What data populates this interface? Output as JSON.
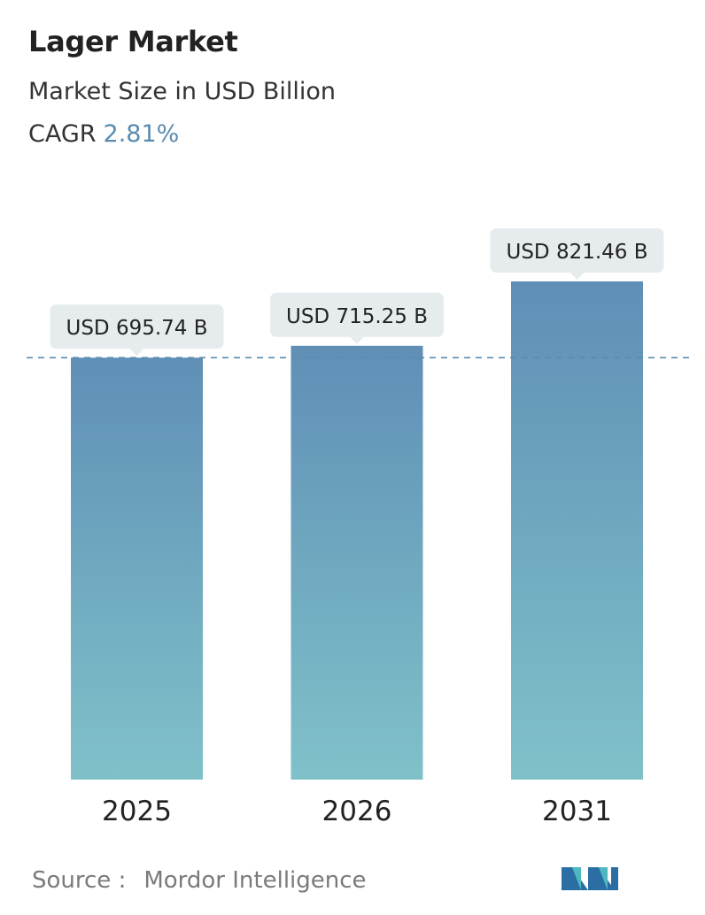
{
  "header": {
    "title": "Lager Market",
    "subtitle": "Market Size in USD Billion",
    "cagr_label": "CAGR",
    "cagr_value": "2.81%"
  },
  "chart_data": {
    "type": "bar",
    "categories": [
      "2025",
      "2026",
      "2031"
    ],
    "values": [
      695.74,
      715.25,
      821.46
    ],
    "data_labels": [
      "USD 695.74 B",
      "USD 715.25 B",
      "USD 821.46 B"
    ],
    "ylim": [
      0,
      821.46
    ],
    "grid": false,
    "reference_line": 695.74,
    "colors": {
      "bar_top": "#5f8fb6",
      "bar_bottom": "#80c1c9",
      "label_bg": "#e6eced",
      "dash": "#5a8cb0"
    }
  },
  "footer": {
    "source_label": "Source :",
    "source_name": "Mordor Intelligence"
  }
}
